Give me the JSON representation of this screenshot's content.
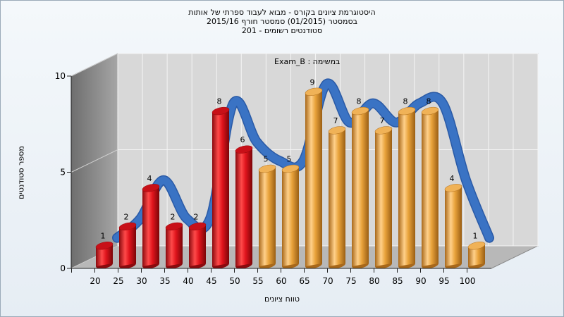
{
  "title": {
    "line1": "היסטוגרמת ציונים בקורס - מבוא לעבוד ספרתי של אותות",
    "line2": "בסמסטר  (01/2015)  סמסטר חורף 2015/16",
    "line3": "סטודנטים רשומים - 201"
  },
  "annotation": "במשימה : Exam_B",
  "colors": {
    "low": "#e0141c",
    "high": "#e8a23a",
    "curve": "#3a73c4",
    "wall": "#8a8a8a",
    "floor": "#b8b8b8",
    "plot": "#d8d8d8"
  },
  "chart_data": {
    "type": "bar",
    "title": "היסטוגרמת ציונים בקורס - מבוא לעבוד ספרתי של אותות",
    "xlabel": "טווח ציונים",
    "ylabel": "מספר סטודנטים",
    "categories": [
      "20",
      "25",
      "30",
      "35",
      "40",
      "45",
      "50",
      "55",
      "60",
      "65",
      "70",
      "75",
      "80",
      "85",
      "90",
      "95",
      "100"
    ],
    "values": [
      1,
      2,
      4,
      2,
      2,
      8,
      6,
      5,
      5,
      9,
      7,
      8,
      7,
      8,
      8,
      4,
      1
    ],
    "bar_colors": [
      "red",
      "red",
      "red",
      "red",
      "red",
      "red",
      "red",
      "orange",
      "orange",
      "orange",
      "orange",
      "orange",
      "orange",
      "orange",
      "orange",
      "orange",
      "orange"
    ],
    "curve": {
      "type": "smoothed-line-3d",
      "follows": "values"
    },
    "ylim": [
      0,
      10
    ],
    "yticks": [
      "0",
      "5",
      "10"
    ],
    "grid": true,
    "legend": "none",
    "data_labels": true
  }
}
